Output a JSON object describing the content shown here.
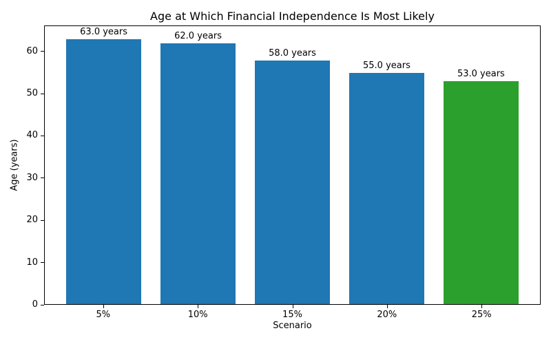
{
  "chart_data": {
    "type": "bar",
    "title": "Age at Which Financial Independence Is Most Likely",
    "xlabel": "Scenario",
    "ylabel": "Age (years)",
    "categories": [
      "5%",
      "10%",
      "15%",
      "20%",
      "25%"
    ],
    "values": [
      63.0,
      62.0,
      58.0,
      55.0,
      53.0
    ],
    "bar_labels": [
      "63.0 years",
      "62.0 years",
      "58.0 years",
      "55.0 years",
      "53.0 years"
    ],
    "bar_colors": [
      "#1f77b4",
      "#1f77b4",
      "#1f77b4",
      "#1f77b4",
      "#2ca02c"
    ],
    "yticks": [
      0,
      10,
      20,
      30,
      40,
      50,
      60
    ],
    "ylim": [
      0,
      66.15
    ],
    "bar_width_fraction": 0.8,
    "grid": false,
    "legend_position": "none",
    "axis_color": "#000000",
    "background_color": "#ffffff"
  }
}
